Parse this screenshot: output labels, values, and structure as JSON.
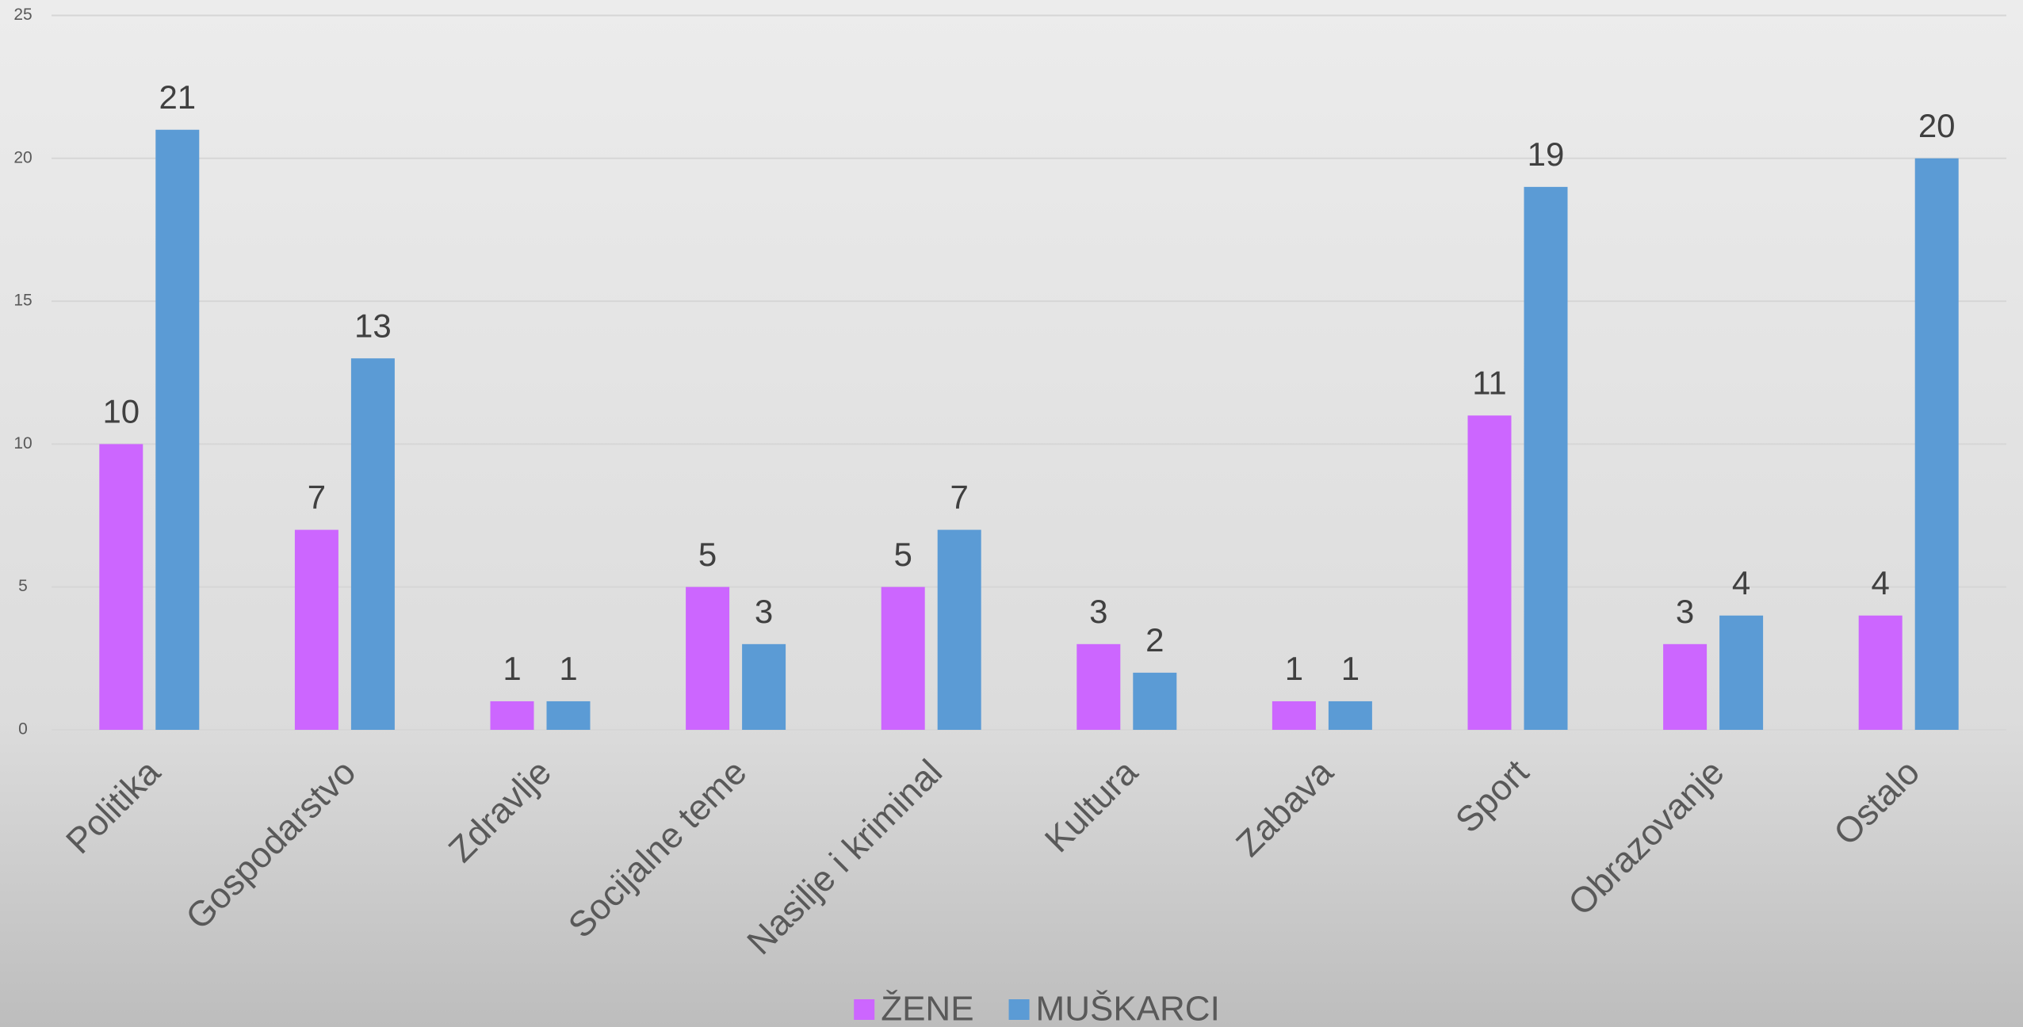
{
  "chart_data": {
    "type": "bar",
    "categories": [
      "Politika",
      "Gospodarstvo",
      "Zdravlje",
      "Socijalne teme",
      "Nasilje i kriminal",
      "Kultura",
      "Zabava",
      "Sport",
      "Obrazovanje",
      "Ostalo"
    ],
    "series": [
      {
        "name": "ŽENE",
        "color": "#cc66ff",
        "values": [
          10,
          7,
          1,
          5,
          5,
          3,
          1,
          11,
          3,
          4
        ]
      },
      {
        "name": "MUŠKARCI",
        "color": "#5b9bd5",
        "values": [
          21,
          13,
          1,
          3,
          7,
          2,
          1,
          19,
          4,
          20
        ]
      }
    ],
    "ylim": [
      0,
      25
    ],
    "yticks": [
      0,
      5,
      10,
      15,
      20,
      25
    ],
    "grid": true,
    "legend": "bottom"
  }
}
